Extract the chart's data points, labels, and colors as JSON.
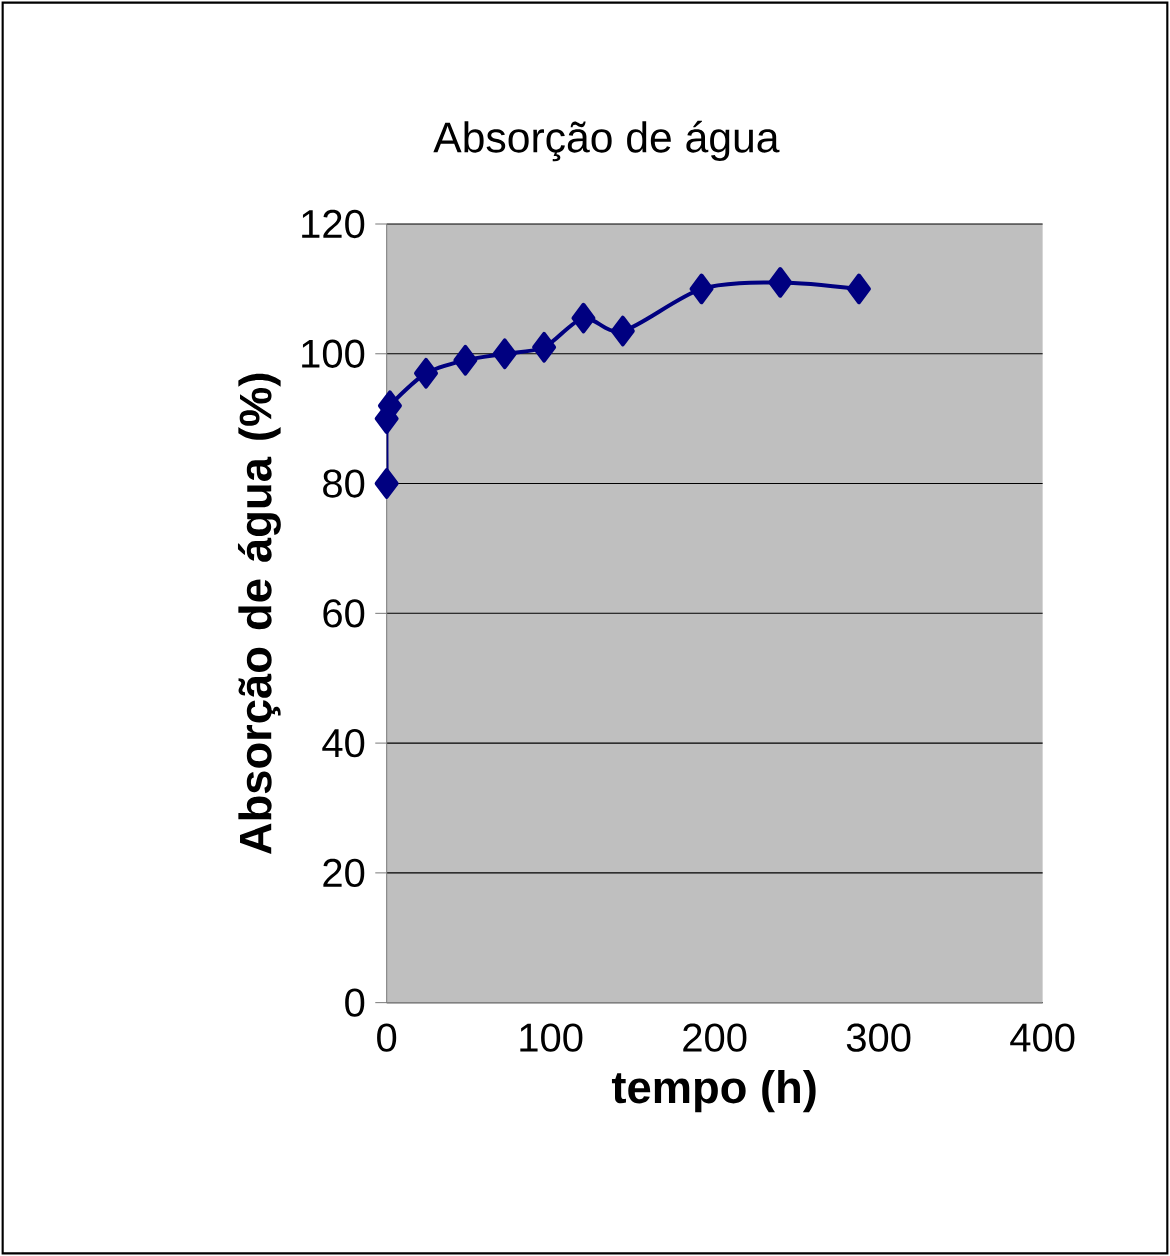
{
  "chart_data": {
    "type": "line",
    "title": "Absorção de água",
    "xlabel": "tempo (h)",
    "ylabel": "Absorção de água (%)",
    "x": [
      0,
      0,
      2,
      24,
      48,
      72,
      96,
      120,
      144,
      192,
      240,
      288
    ],
    "series": [
      {
        "color": "#000080",
        "values": [
          80,
          90,
          92,
          97,
          99,
          100,
          101,
          105.5,
          103.5,
          110,
          111,
          110
        ]
      }
    ],
    "xlim": [
      0,
      400
    ],
    "xticks": [
      0,
      100,
      200,
      300,
      400
    ],
    "ylim": [
      0,
      120
    ],
    "yticks": [
      0,
      20,
      40,
      60,
      80,
      100,
      120
    ],
    "grid": "y",
    "marker": "diamond",
    "line_style": "solid"
  }
}
